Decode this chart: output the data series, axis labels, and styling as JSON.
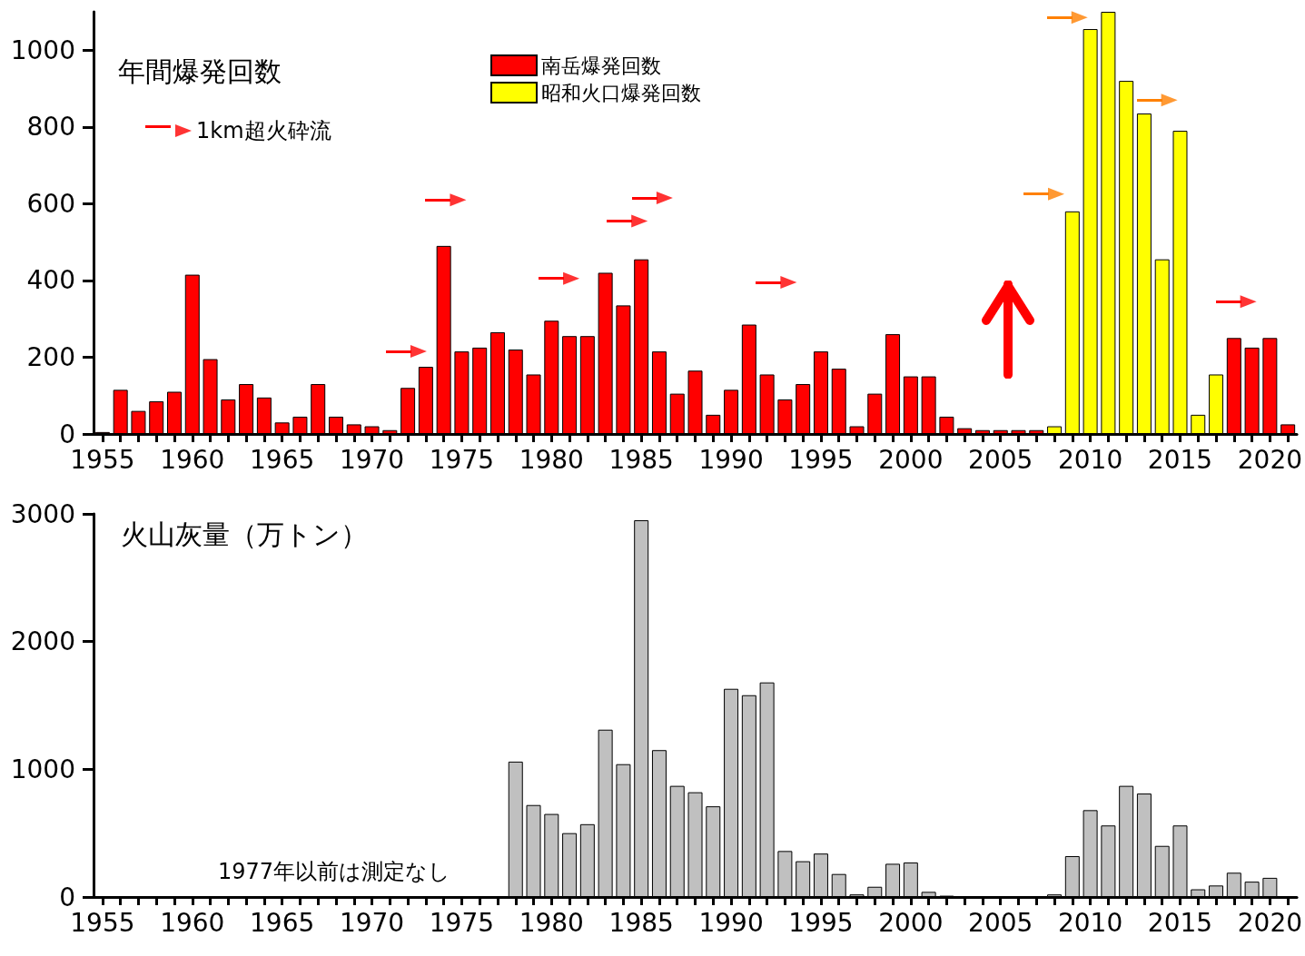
{
  "chart_data": [
    {
      "type": "bar",
      "title": "年間爆発回数",
      "xlim": [
        1954.5,
        2021.5
      ],
      "ylim": [
        0,
        1100
      ],
      "yticks": [
        0,
        200,
        400,
        600,
        800,
        1000
      ],
      "xticks": [
        1955,
        {
          "value": 1956,
          "label": null
        },
        {
          "value": 1957,
          "label": null
        },
        {
          "value": 1958,
          "label": null
        },
        {
          "value": 1959,
          "label": null
        },
        1960,
        {
          "value": 1961,
          "label": null
        },
        {
          "value": 1962,
          "label": null
        },
        {
          "value": 1963,
          "label": null
        },
        {
          "value": 1964,
          "label": null
        },
        1965,
        {
          "value": 1966,
          "label": null
        },
        {
          "value": 1967,
          "label": null
        },
        {
          "value": 1968,
          "label": null
        },
        {
          "value": 1969,
          "label": null
        },
        1970,
        {
          "value": 1971,
          "label": null
        },
        {
          "value": 1972,
          "label": null
        },
        {
          "value": 1973,
          "label": null
        },
        {
          "value": 1974,
          "label": null
        },
        1975,
        {
          "value": 1976,
          "label": null
        },
        {
          "value": 1977,
          "label": null
        },
        {
          "value": 1978,
          "label": null
        },
        {
          "value": 1979,
          "label": null
        },
        1980,
        {
          "value": 1981,
          "label": null
        },
        {
          "value": 1982,
          "label": null
        },
        {
          "value": 1983,
          "label": null
        },
        {
          "value": 1984,
          "label": null
        },
        1985,
        {
          "value": 1986,
          "label": null
        },
        {
          "value": 1987,
          "label": null
        },
        {
          "value": 1988,
          "label": null
        },
        {
          "value": 1989,
          "label": null
        },
        1990,
        {
          "value": 1991,
          "label": null
        },
        {
          "value": 1992,
          "label": null
        },
        {
          "value": 1993,
          "label": null
        },
        {
          "value": 1994,
          "label": null
        },
        1995,
        {
          "value": 1996,
          "label": null
        },
        {
          "value": 1997,
          "label": null
        },
        {
          "value": 1998,
          "label": null
        },
        {
          "value": 1999,
          "label": null
        },
        2000,
        {
          "value": 2001,
          "label": null
        },
        {
          "value": 2002,
          "label": null
        },
        {
          "value": 2003,
          "label": null
        },
        {
          "value": 2004,
          "label": null
        },
        2005,
        {
          "value": 2006,
          "label": null
        },
        {
          "value": 2007,
          "label": null
        },
        {
          "value": 2008,
          "label": null
        },
        {
          "value": 2009,
          "label": null
        },
        2010,
        {
          "value": 2011,
          "label": null
        },
        {
          "value": 2012,
          "label": null
        },
        {
          "value": 2013,
          "label": null
        },
        {
          "value": 2014,
          "label": null
        },
        2015,
        {
          "value": 2016,
          "label": null
        },
        {
          "value": 2017,
          "label": null
        },
        {
          "value": 2018,
          "label": null
        },
        {
          "value": 2019,
          "label": null
        },
        2020,
        {
          "value": 2021,
          "label": null
        }
      ],
      "legend": "top",
      "series": [
        {
          "name": "南岳爆発回数",
          "color": "#ff0000",
          "x": [
            1955,
            1956,
            1957,
            1958,
            1959,
            1960,
            1961,
            1962,
            1963,
            1964,
            1965,
            1966,
            1967,
            1968,
            1969,
            1970,
            1971,
            1972,
            1973,
            1974,
            1975,
            1976,
            1977,
            1978,
            1979,
            1980,
            1981,
            1982,
            1983,
            1984,
            1985,
            1986,
            1987,
            1988,
            1989,
            1990,
            1991,
            1992,
            1993,
            1994,
            1995,
            1996,
            1997,
            1998,
            1999,
            2000,
            2001,
            2002,
            2003,
            2004,
            2005,
            2006,
            2007,
            2018,
            2019,
            2020,
            2021
          ],
          "values": [
            5,
            115,
            60,
            85,
            110,
            415,
            195,
            90,
            130,
            95,
            30,
            45,
            130,
            45,
            25,
            20,
            10,
            120,
            175,
            490,
            215,
            225,
            265,
            220,
            155,
            295,
            255,
            255,
            420,
            335,
            455,
            215,
            105,
            165,
            50,
            115,
            285,
            155,
            90,
            130,
            215,
            170,
            20,
            105,
            260,
            150,
            150,
            45,
            15,
            10,
            10,
            10,
            10,
            250,
            225,
            250,
            25
          ]
        },
        {
          "name": "昭和火口爆発回数",
          "color": "#ffff00",
          "x": [
            2008,
            2009,
            2010,
            2011,
            2012,
            2013,
            2014,
            2015,
            2016,
            2017
          ],
          "values": [
            20,
            580,
            1055,
            1100,
            920,
            835,
            455,
            790,
            50,
            155
          ]
        },
        {
          "name": "1km超火砕流",
          "type": "scatter",
          "color": "#ff0000",
          "x": [
            1972.6,
            1974.8,
            1981.1,
            1984.9,
            1986.3,
            1993.2,
            2018.8
          ],
          "values": [
            215,
            610,
            405,
            555,
            615,
            395,
            345
          ]
        },
        {
          "type": "scatter",
          "color": "#ff8000",
          "x": [
            2008.1,
            2009.4,
            2014.4
          ],
          "values": [
            625,
            1085,
            870
          ]
        }
      ]
    },
    {
      "type": "bar",
      "title": "火山灰量（万トン）",
      "annotations": [
        "1977年以前は測定なし"
      ],
      "xlim": [
        1954.5,
        2021.5
      ],
      "ylim": [
        0,
        3000
      ],
      "yticks": [
        0,
        1000,
        2000,
        3000
      ],
      "xticks": [
        1955,
        {
          "value": 1956,
          "label": null
        },
        {
          "value": 1957,
          "label": null
        },
        {
          "value": 1958,
          "label": null
        },
        {
          "value": 1959,
          "label": null
        },
        1960,
        {
          "value": 1961,
          "label": null
        },
        {
          "value": 1962,
          "label": null
        },
        {
          "value": 1963,
          "label": null
        },
        {
          "value": 1964,
          "label": null
        },
        1965,
        {
          "value": 1966,
          "label": null
        },
        {
          "value": 1967,
          "label": null
        },
        {
          "value": 1968,
          "label": null
        },
        {
          "value": 1969,
          "label": null
        },
        1970,
        {
          "value": 1971,
          "label": null
        },
        {
          "value": 1972,
          "label": null
        },
        {
          "value": 1973,
          "label": null
        },
        {
          "value": 1974,
          "label": null
        },
        1975,
        {
          "value": 1976,
          "label": null
        },
        {
          "value": 1977,
          "label": null
        },
        {
          "value": 1978,
          "label": null
        },
        {
          "value": 1979,
          "label": null
        },
        1980,
        {
          "value": 1981,
          "label": null
        },
        {
          "value": 1982,
          "label": null
        },
        {
          "value": 1983,
          "label": null
        },
        {
          "value": 1984,
          "label": null
        },
        1985,
        {
          "value": 1986,
          "label": null
        },
        {
          "value": 1987,
          "label": null
        },
        {
          "value": 1988,
          "label": null
        },
        {
          "value": 1989,
          "label": null
        },
        1990,
        {
          "value": 1991,
          "label": null
        },
        {
          "value": 1992,
          "label": null
        },
        {
          "value": 1993,
          "label": null
        },
        {
          "value": 1994,
          "label": null
        },
        1995,
        {
          "value": 1996,
          "label": null
        },
        {
          "value": 1997,
          "label": null
        },
        {
          "value": 1998,
          "label": null
        },
        {
          "value": 1999,
          "label": null
        },
        2000,
        {
          "value": 2001,
          "label": null
        },
        {
          "value": 2002,
          "label": null
        },
        {
          "value": 2003,
          "label": null
        },
        {
          "value": 2004,
          "label": null
        },
        2005,
        {
          "value": 2006,
          "label": null
        },
        {
          "value": 2007,
          "label": null
        },
        {
          "value": 2008,
          "label": null
        },
        {
          "value": 2009,
          "label": null
        },
        2010,
        {
          "value": 2011,
          "label": null
        },
        {
          "value": 2012,
          "label": null
        },
        {
          "value": 2013,
          "label": null
        },
        {
          "value": 2014,
          "label": null
        },
        2015,
        {
          "value": 2016,
          "label": null
        },
        {
          "value": 2017,
          "label": null
        },
        {
          "value": 2018,
          "label": null
        },
        {
          "value": 2019,
          "label": null
        },
        2020,
        {
          "value": 2021,
          "label": null
        }
      ],
      "series": [
        {
          "color": "#c0c0c0",
          "x": [
            1978,
            1979,
            1980,
            1981,
            1982,
            1983,
            1984,
            1985,
            1986,
            1987,
            1988,
            1989,
            1990,
            1991,
            1992,
            1993,
            1994,
            1995,
            1996,
            1997,
            1998,
            1999,
            2000,
            2001,
            2002,
            2008,
            2009,
            2010,
            2011,
            2012,
            2013,
            2014,
            2015,
            2016,
            2017,
            2018,
            2019,
            2020
          ],
          "values": [
            1060,
            720,
            650,
            500,
            570,
            1310,
            1040,
            2950,
            1150,
            870,
            820,
            710,
            1630,
            1580,
            1680,
            360,
            280,
            340,
            180,
            20,
            80,
            260,
            270,
            40,
            10,
            20,
            320,
            680,
            560,
            870,
            810,
            400,
            560,
            60,
            90,
            190,
            120,
            150
          ]
        }
      ]
    }
  ]
}
